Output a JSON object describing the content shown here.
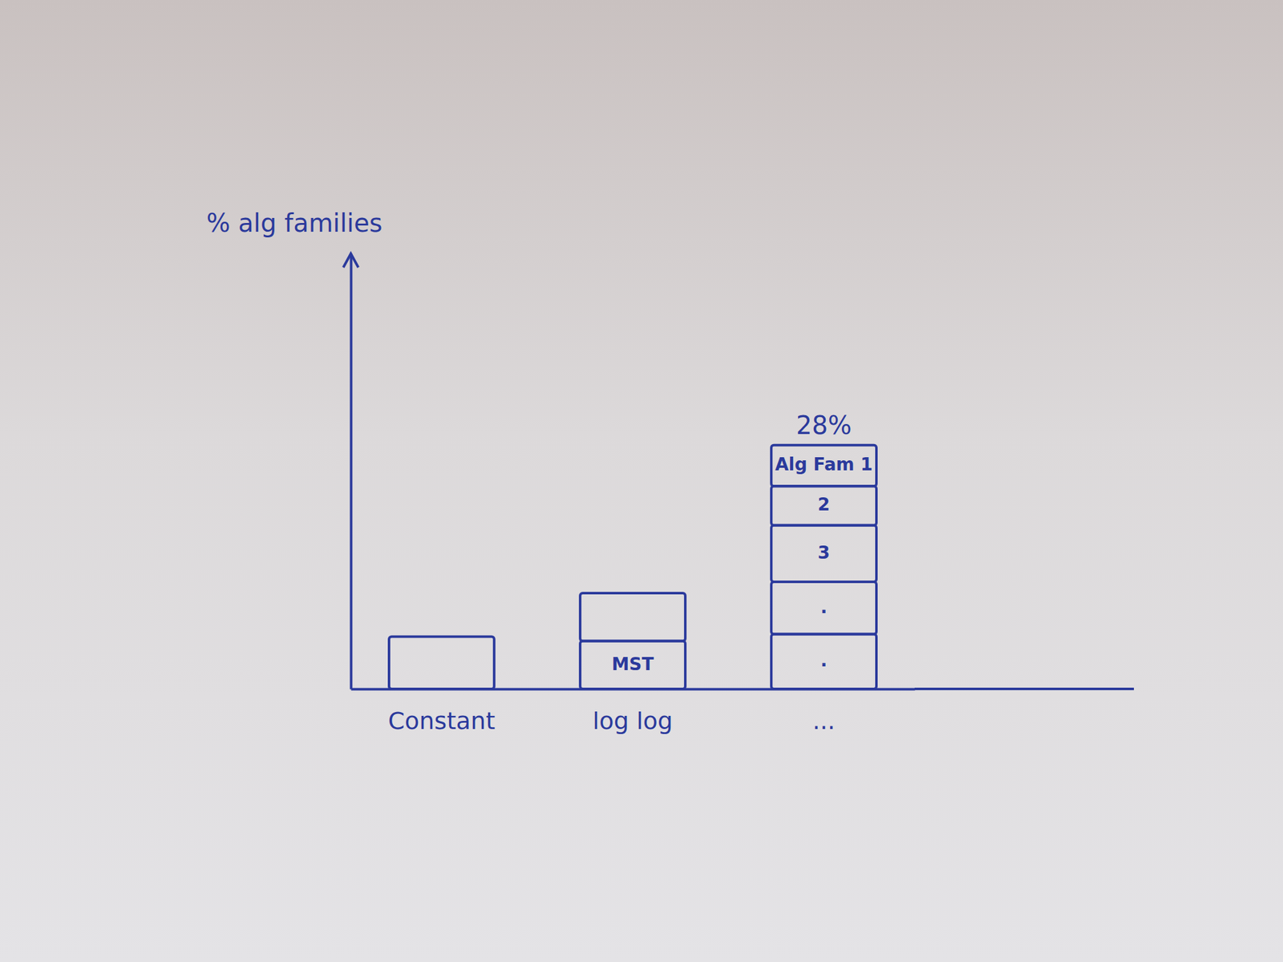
{
  "chart_data": {
    "type": "bar",
    "stacked": true,
    "y_label": "% alg families",
    "categories": [
      "Constant",
      "log log",
      "..."
    ],
    "segments": [
      [
        {
          "value": 6
        }
      ],
      [
        {
          "value": 5.5,
          "label": "MST"
        },
        {
          "value": 5.5
        }
      ],
      [
        {
          "value": 6.3,
          "label": "."
        },
        {
          "value": 6,
          "label": "."
        },
        {
          "value": 6.5,
          "label": "3"
        },
        {
          "value": 4.5,
          "label": "2"
        },
        {
          "value": 4.7,
          "label": "Alg Fam 1"
        }
      ]
    ],
    "totals": [
      null,
      null,
      28
    ],
    "total_labels": [
      null,
      null,
      "28%"
    ],
    "ylim": [
      0,
      50
    ],
    "tick_labels": false,
    "grid": false,
    "color": "#2b3a9c"
  }
}
